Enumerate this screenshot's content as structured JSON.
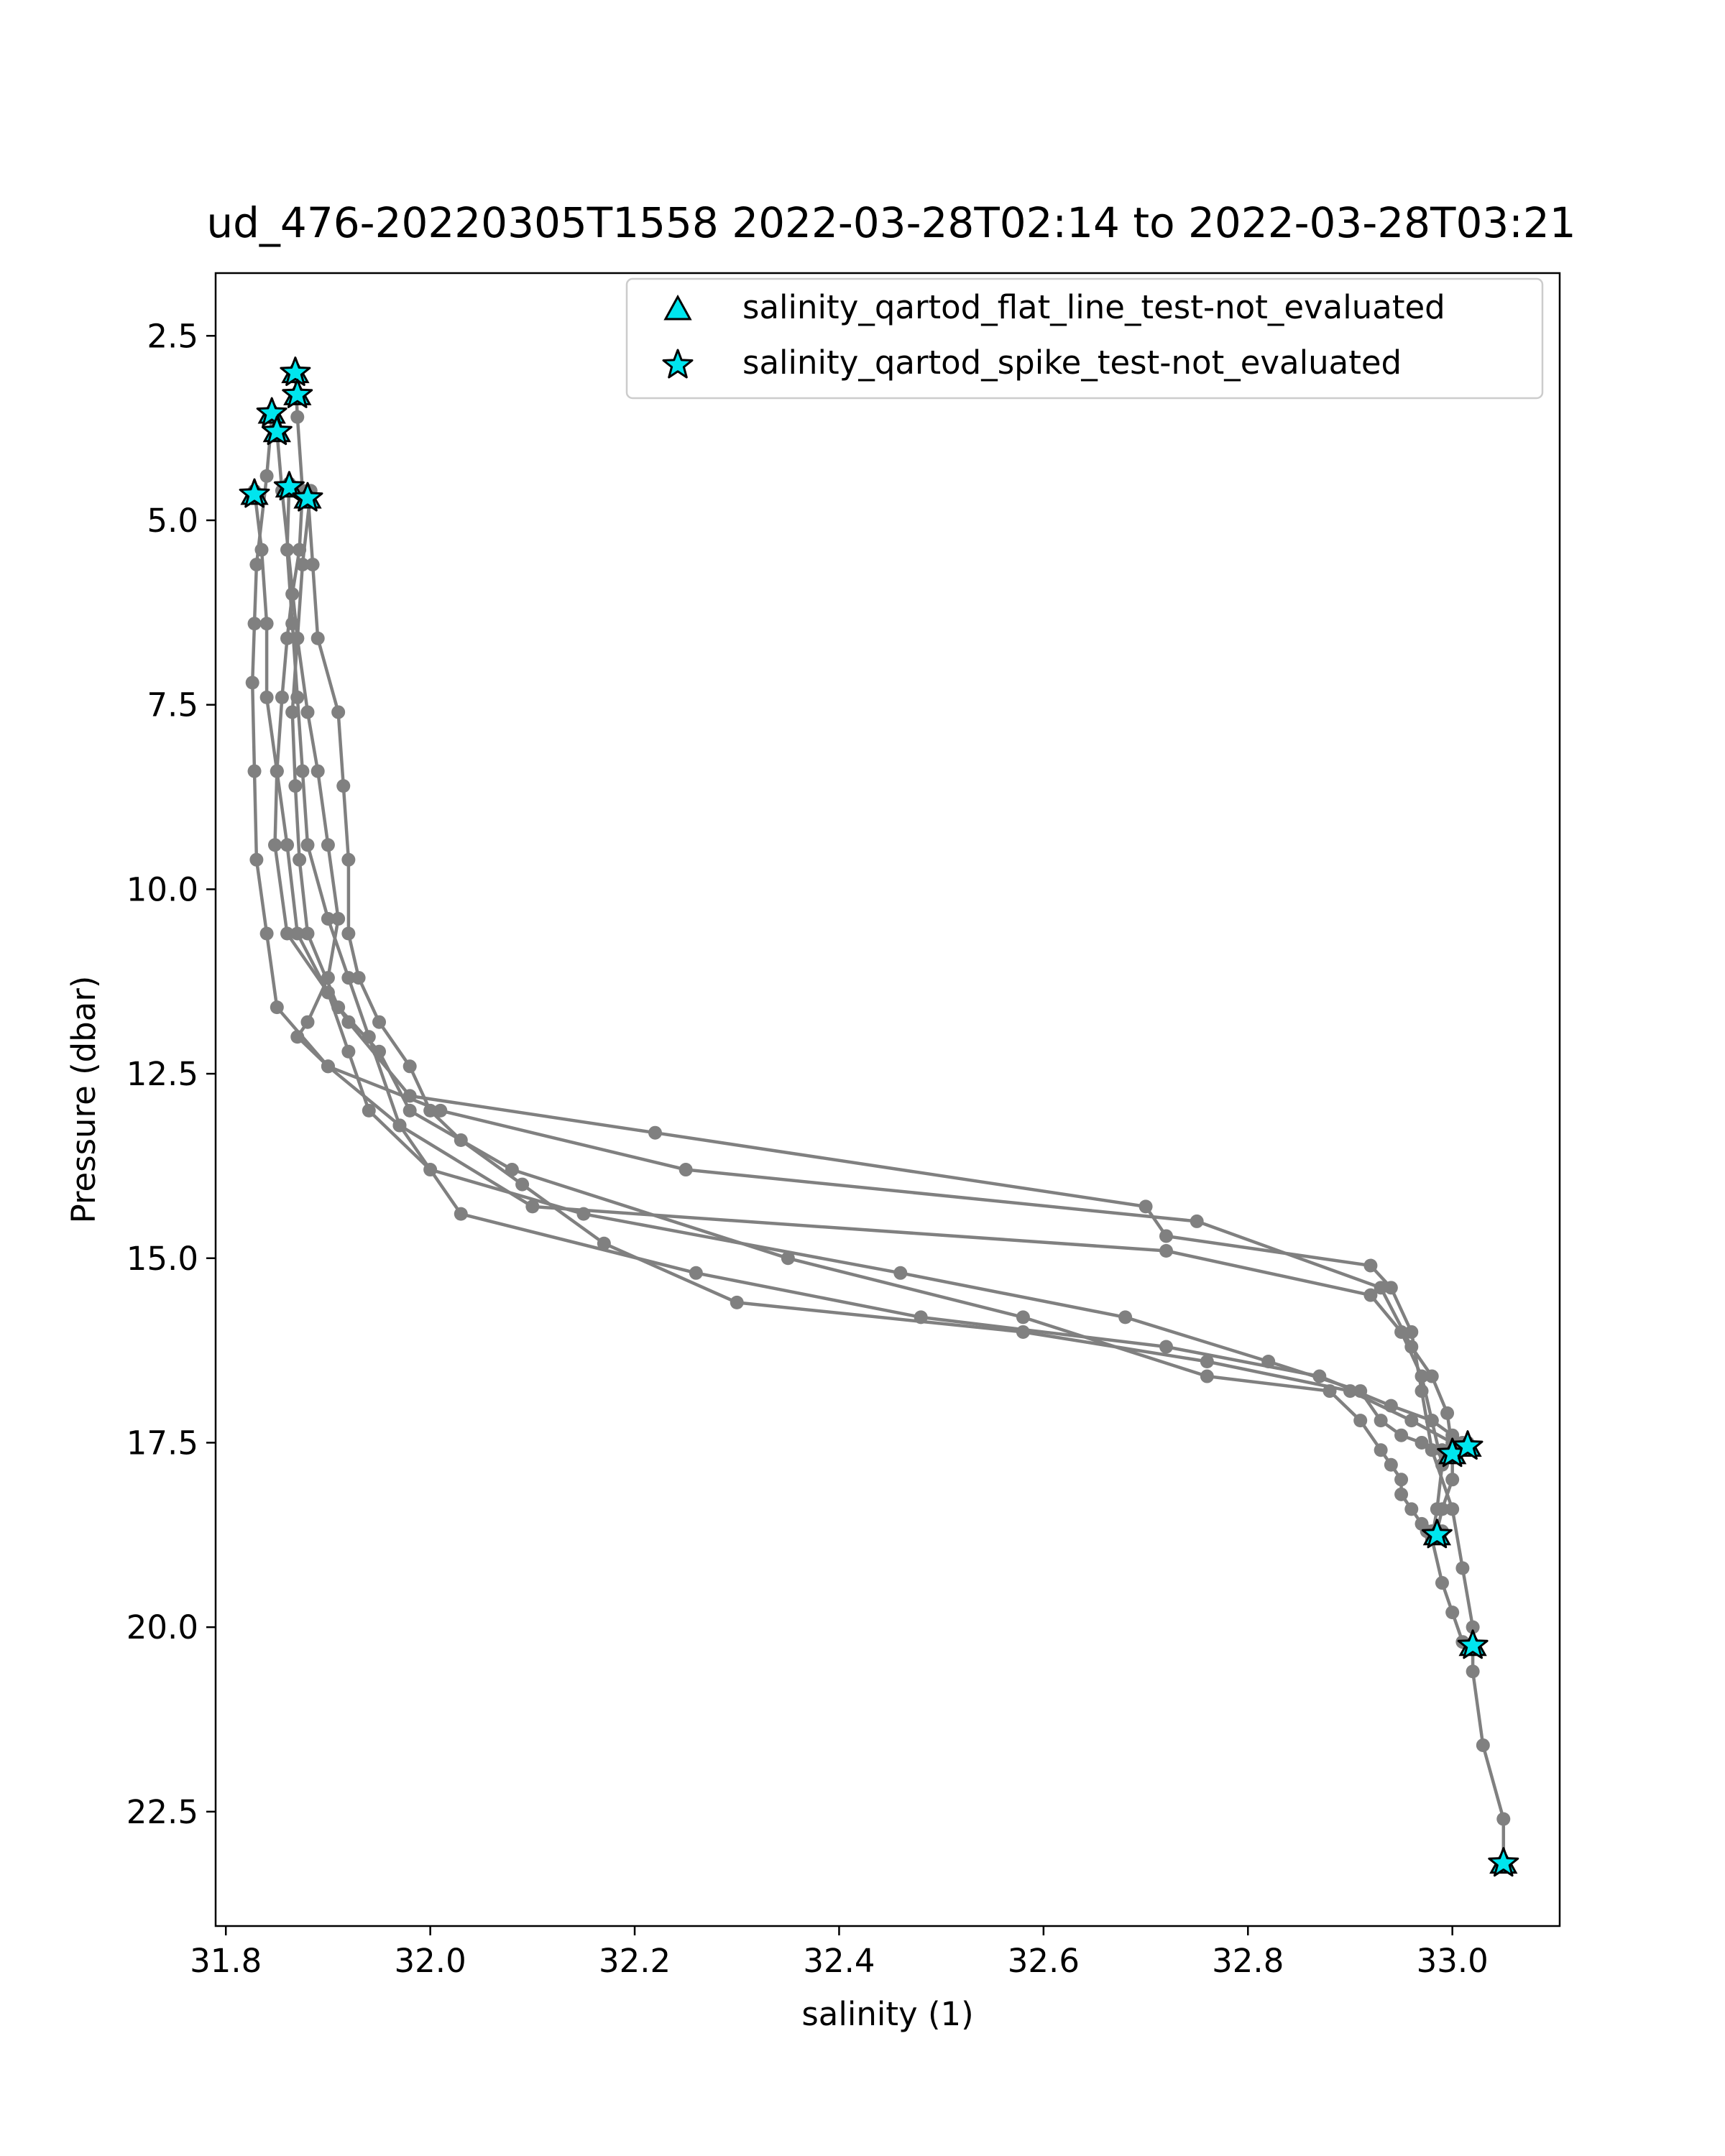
{
  "chart_data": {
    "type": "scatter",
    "title": "ud_476-20220305T1558 2022-03-28T02:14 to 2022-03-28T03:21",
    "xlabel": "salinity (1)",
    "ylabel": "Pressure (dbar)",
    "xlim": [
      31.79,
      33.105
    ],
    "ylim": [
      24.05,
      1.65
    ],
    "y_inverted": true,
    "grid": false,
    "legend_position": "top-right",
    "xticks": [
      31.8,
      32.0,
      32.2,
      32.4,
      32.6,
      32.8,
      33.0
    ],
    "xtick_labels": [
      "31.8",
      "32.0",
      "32.2",
      "32.4",
      "32.6",
      "32.8",
      "33.0"
    ],
    "yticks": [
      2.5,
      5.0,
      7.5,
      10.0,
      12.5,
      15.0,
      17.5,
      20.0,
      22.5
    ],
    "ytick_labels": [
      "2.5",
      "5.0",
      "7.5",
      "10.0",
      "12.5",
      "15.0",
      "17.5",
      "20.0",
      "22.5"
    ],
    "colors": {
      "profile_line": "#808080",
      "marker_fill": "#00e5ee",
      "marker_edge": "#000000",
      "axes": "#000000",
      "legend_border": "#cccccc"
    },
    "profiles": [
      {
        "x": [
          31.868,
          31.87,
          31.875,
          31.872,
          31.865,
          31.86,
          31.855,
          31.85,
          31.848,
          31.86,
          31.92,
          31.98,
          32.22,
          32.7,
          32.72,
          32.92,
          32.94,
          32.96,
          32.97,
          32.98,
          33.0,
          33.01,
          33.02,
          33.02,
          33.03,
          33.05,
          33.05
        ],
        "y": [
          3.0,
          3.6,
          4.6,
          5.4,
          6.0,
          6.6,
          7.4,
          8.4,
          9.4,
          10.6,
          11.8,
          12.8,
          13.3,
          14.3,
          14.7,
          15.1,
          15.4,
          16.0,
          16.8,
          17.6,
          18.4,
          19.2,
          20.0,
          20.6,
          21.6,
          22.6,
          23.2
        ]
      },
      {
        "x": [
          31.845,
          31.84,
          31.83,
          31.828,
          31.826,
          31.828,
          31.83,
          31.84,
          31.85,
          31.9,
          31.97,
          32.1,
          32.72,
          32.92,
          32.95,
          32.97,
          32.98,
          32.99,
          32.985,
          32.98,
          32.99,
          33.0,
          33.01
        ],
        "y": [
          3.6,
          4.4,
          5.6,
          6.4,
          7.2,
          8.4,
          9.6,
          10.6,
          11.6,
          12.4,
          13.2,
          14.3,
          14.9,
          15.5,
          16.0,
          16.6,
          17.2,
          17.8,
          18.4,
          18.8,
          19.4,
          19.8,
          20.2
        ]
      },
      {
        "x": [
          31.85,
          31.855,
          31.87,
          31.88,
          31.89,
          31.9,
          31.91,
          31.9,
          31.88,
          31.87,
          31.9,
          32.01,
          32.25,
          32.75,
          32.93,
          32.96,
          32.98,
          32.995,
          33.0,
          33.0,
          32.99,
          32.985
        ],
        "y": [
          3.8,
          4.6,
          6.6,
          7.6,
          8.4,
          9.4,
          10.4,
          11.2,
          11.8,
          12.0,
          12.4,
          13.0,
          13.8,
          14.5,
          15.4,
          16.2,
          16.6,
          17.1,
          17.6,
          18.0,
          18.4,
          18.7
        ]
      },
      {
        "x": [
          31.883,
          31.875,
          31.87,
          31.865,
          31.868,
          31.872,
          31.88,
          31.91,
          31.95,
          31.98,
          32.08,
          32.35,
          32.58,
          32.76,
          32.88,
          32.91,
          32.93,
          32.94,
          32.95,
          32.95,
          32.96,
          32.97,
          32.975,
          32.98,
          32.99
        ],
        "y": [
          4.6,
          5.6,
          6.6,
          7.6,
          8.6,
          9.6,
          10.6,
          11.6,
          12.2,
          13.0,
          13.8,
          15.0,
          15.8,
          16.6,
          16.8,
          17.2,
          17.6,
          17.8,
          18.0,
          18.2,
          18.4,
          18.6,
          18.7,
          18.7,
          18.7
        ]
      },
      {
        "x": [
          31.828,
          31.835,
          31.84,
          31.84,
          31.85,
          31.86,
          31.87,
          31.9,
          31.92,
          31.94,
          32.0,
          32.15,
          32.46,
          32.68,
          32.82,
          32.91,
          32.93,
          32.95,
          32.97,
          32.99
        ],
        "y": [
          4.6,
          5.4,
          6.4,
          7.4,
          8.4,
          9.4,
          10.6,
          11.4,
          12.2,
          13.0,
          13.8,
          14.4,
          15.2,
          15.8,
          16.4,
          16.8,
          17.2,
          17.4,
          17.5,
          17.6
        ]
      },
      {
        "x": [
          31.862,
          31.86,
          31.865,
          31.87,
          31.875,
          31.88,
          31.9,
          31.92,
          31.94,
          31.97,
          32.03,
          32.26,
          32.48,
          32.72,
          32.87,
          32.94,
          32.98,
          33.0,
          33.01,
          33.015
        ],
        "y": [
          4.5,
          5.4,
          6.4,
          7.4,
          8.4,
          9.4,
          10.4,
          11.2,
          12.0,
          13.2,
          14.4,
          15.2,
          15.8,
          16.2,
          16.6,
          17.0,
          17.2,
          17.4,
          17.5,
          17.5
        ]
      },
      {
        "x": [
          31.88,
          31.885,
          31.89,
          31.91,
          31.915,
          31.92,
          31.92,
          31.93,
          31.95,
          31.98,
          32.0,
          32.03,
          32.09,
          32.17,
          32.3,
          32.58,
          32.76,
          32.9,
          32.96,
          33.0
        ],
        "y": [
          4.6,
          5.6,
          6.6,
          7.6,
          8.6,
          9.6,
          10.6,
          11.2,
          11.8,
          12.4,
          13.0,
          13.4,
          14.0,
          14.8,
          15.6,
          16.0,
          16.4,
          16.8,
          17.2,
          17.5
        ]
      }
    ],
    "flat_line_markers": [
      {
        "x": 31.868,
        "y": 3.0
      },
      {
        "x": 31.87,
        "y": 3.3
      },
      {
        "x": 31.845,
        "y": 3.55
      },
      {
        "x": 31.85,
        "y": 3.8
      },
      {
        "x": 31.828,
        "y": 4.65
      },
      {
        "x": 31.862,
        "y": 4.55
      },
      {
        "x": 31.88,
        "y": 4.7
      },
      {
        "x": 33.0,
        "y": 17.65
      },
      {
        "x": 33.015,
        "y": 17.55
      },
      {
        "x": 32.985,
        "y": 18.75
      },
      {
        "x": 33.02,
        "y": 20.25
      },
      {
        "x": 33.05,
        "y": 23.2
      }
    ],
    "spike_markers": [
      {
        "x": 31.868,
        "y": 3.0
      },
      {
        "x": 31.87,
        "y": 3.3
      },
      {
        "x": 31.845,
        "y": 3.55
      },
      {
        "x": 31.85,
        "y": 3.8
      },
      {
        "x": 31.828,
        "y": 4.65
      },
      {
        "x": 31.862,
        "y": 4.55
      },
      {
        "x": 31.88,
        "y": 4.7
      },
      {
        "x": 33.0,
        "y": 17.65
      },
      {
        "x": 33.015,
        "y": 17.55
      },
      {
        "x": 32.985,
        "y": 18.75
      },
      {
        "x": 33.02,
        "y": 20.25
      },
      {
        "x": 33.05,
        "y": 23.2
      }
    ],
    "legend": [
      {
        "label": "salinity_qartod_flat_line_test-not_evaluated",
        "marker": "triangle"
      },
      {
        "label": "salinity_qartod_spike_test-not_evaluated",
        "marker": "star"
      }
    ]
  }
}
